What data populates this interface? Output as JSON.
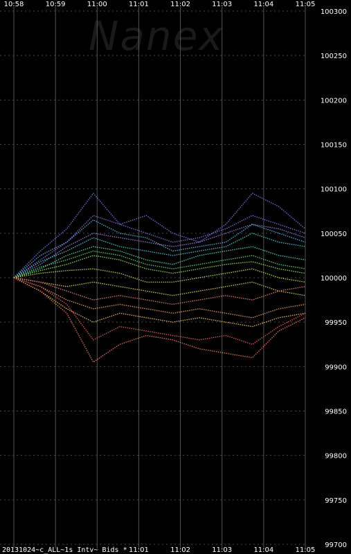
{
  "watermark": "Nanex",
  "footer_label": "20131024~c_ALL~1s Intv~ Bids *",
  "chart_data": {
    "type": "line",
    "title": "",
    "x_ticks_top": [
      "10:58",
      "10:59",
      "11:00",
      "11:01",
      "11:02",
      "11:03",
      "11:04",
      "11:05"
    ],
    "x_ticks_bottom": [
      "11:01",
      "11:02",
      "11:03",
      "11:04",
      "11:05"
    ],
    "x_range": [
      "10:58",
      "11:05"
    ],
    "y_ticks": [
      100300,
      100250,
      100200,
      100150,
      100100,
      100050,
      100000,
      99950,
      99900,
      99850,
      99800,
      99750,
      99700
    ],
    "ylim": [
      99700,
      100300
    ],
    "grid": true,
    "x_grid_style": "solid",
    "y_grid_style": "dashed",
    "background": "#000000",
    "grid_color": "#555555",
    "series": [
      {
        "color": "#6f7fe0",
        "values": [
          100000,
          100030,
          100055,
          100095,
          100060,
          100070,
          100050,
          100040,
          100060,
          100095,
          100080,
          100055
        ]
      },
      {
        "color": "#8a6fe0",
        "values": [
          100000,
          100020,
          100040,
          100070,
          100060,
          100050,
          100040,
          100045,
          100055,
          100070,
          100060,
          100050
        ]
      },
      {
        "color": "#a07fe8",
        "values": [
          100000,
          100015,
          100035,
          100050,
          100045,
          100040,
          100035,
          100040,
          100050,
          100060,
          100055,
          100045
        ]
      },
      {
        "color": "#5ab8e8",
        "values": [
          100000,
          100025,
          100040,
          100065,
          100050,
          100045,
          100030,
          100035,
          100040,
          100060,
          100050,
          100040
        ]
      },
      {
        "color": "#4fc8d8",
        "values": [
          100000,
          100018,
          100030,
          100045,
          100035,
          100030,
          100025,
          100030,
          100035,
          100050,
          100040,
          100035
        ]
      },
      {
        "color": "#58d8b8",
        "values": [
          100000,
          100010,
          100025,
          100035,
          100030,
          100020,
          100015,
          100025,
          100030,
          100035,
          100025,
          100020
        ]
      },
      {
        "color": "#5fd870",
        "values": [
          100000,
          100012,
          100020,
          100030,
          100025,
          100015,
          100010,
          100015,
          100020,
          100025,
          100015,
          100010
        ]
      },
      {
        "color": "#8ee060",
        "values": [
          100000,
          100008,
          100015,
          100025,
          100020,
          100010,
          100005,
          100010,
          100015,
          100018,
          100010,
          100005
        ]
      },
      {
        "color": "#c0e060",
        "values": [
          100000,
          100005,
          100008,
          100010,
          100005,
          99995,
          99995,
          100000,
          100005,
          100010,
          100000,
          99995
        ]
      },
      {
        "color": "#e0d060",
        "values": [
          100000,
          99995,
          99990,
          99995,
          99990,
          99985,
          99980,
          99985,
          99990,
          99995,
          99985,
          99980
        ]
      },
      {
        "color": "#f0c060",
        "values": [
          100000,
          99985,
          99965,
          99950,
          99960,
          99955,
          99950,
          99955,
          99950,
          99945,
          99955,
          99960
        ]
      },
      {
        "color": "#f0a060",
        "values": [
          100000,
          99990,
          99975,
          99965,
          99970,
          99965,
          99960,
          99965,
          99960,
          99955,
          99965,
          99970
        ]
      },
      {
        "color": "#f07a5a",
        "values": [
          100000,
          99985,
          99960,
          99905,
          99925,
          99935,
          99930,
          99920,
          99915,
          99910,
          99940,
          99955
        ]
      },
      {
        "color": "#e86060",
        "values": [
          100000,
          99990,
          99970,
          99930,
          99945,
          99940,
          99935,
          99930,
          99935,
          99925,
          99945,
          99960
        ]
      },
      {
        "color": "#e88080",
        "values": [
          100000,
          99995,
          99985,
          99975,
          99980,
          99975,
          99970,
          99975,
          99980,
          99975,
          99985,
          99990
        ]
      }
    ]
  }
}
